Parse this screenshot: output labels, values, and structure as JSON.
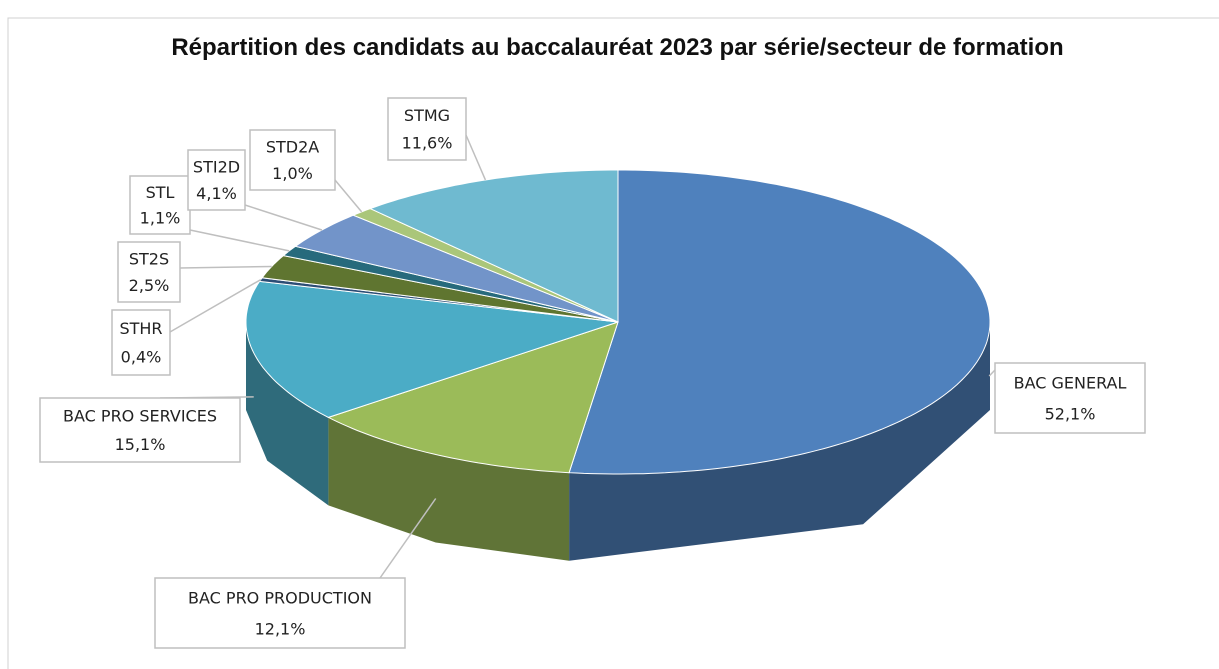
{
  "chart_data": {
    "type": "pie3d",
    "title": "Répartition des candidats au baccalauréat 2023 par série/secteur de formation",
    "categories": [
      "BAC GENERAL",
      "BAC PRO PRODUCTION",
      "BAC PRO SERVICES",
      "STHR",
      "ST2S",
      "STL",
      "STI2D",
      "STD2A",
      "STMG"
    ],
    "values": [
      52.1,
      12.1,
      15.1,
      0.4,
      2.5,
      1.1,
      4.1,
      1.0,
      11.6
    ],
    "value_labels": [
      "52,1%",
      "12,1%",
      "15,1%",
      "0,4%",
      "2,5%",
      "1,1%",
      "4,1%",
      "1,0%",
      "11,6%"
    ],
    "colors": [
      "#4f81bd",
      "#9bbb59",
      "#4bacc6",
      "#2c4d75",
      "#5f7530",
      "#276a7c",
      "#7294c9",
      "#aac67a",
      "#6fbad0"
    ]
  }
}
